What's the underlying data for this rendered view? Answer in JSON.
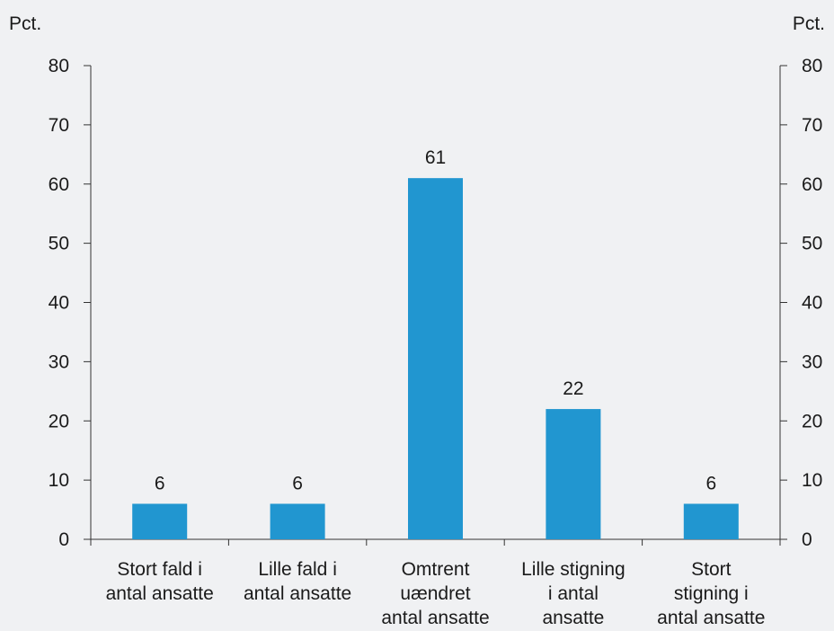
{
  "chart_data": {
    "type": "bar",
    "categories": [
      [
        "Stort fald i",
        "antal ansatte"
      ],
      [
        "Lille fald i",
        "antal ansatte"
      ],
      [
        "Omtrent",
        "uændret",
        "antal ansatte"
      ],
      [
        "Lille stigning",
        "i antal",
        "ansatte"
      ],
      [
        "Stort",
        "stigning i",
        "antal ansatte"
      ]
    ],
    "values": [
      6,
      6,
      61,
      22,
      6
    ],
    "data_labels": [
      "6",
      "6",
      "61",
      "22",
      "6"
    ],
    "ylabel_left": "Pct.",
    "ylabel_right": "Pct.",
    "ylim": [
      0,
      80
    ],
    "yticks": [
      0,
      10,
      20,
      30,
      40,
      50,
      60,
      70,
      80
    ],
    "grid": false,
    "bar_color": "#2196d0",
    "axis_color": "#333333"
  }
}
